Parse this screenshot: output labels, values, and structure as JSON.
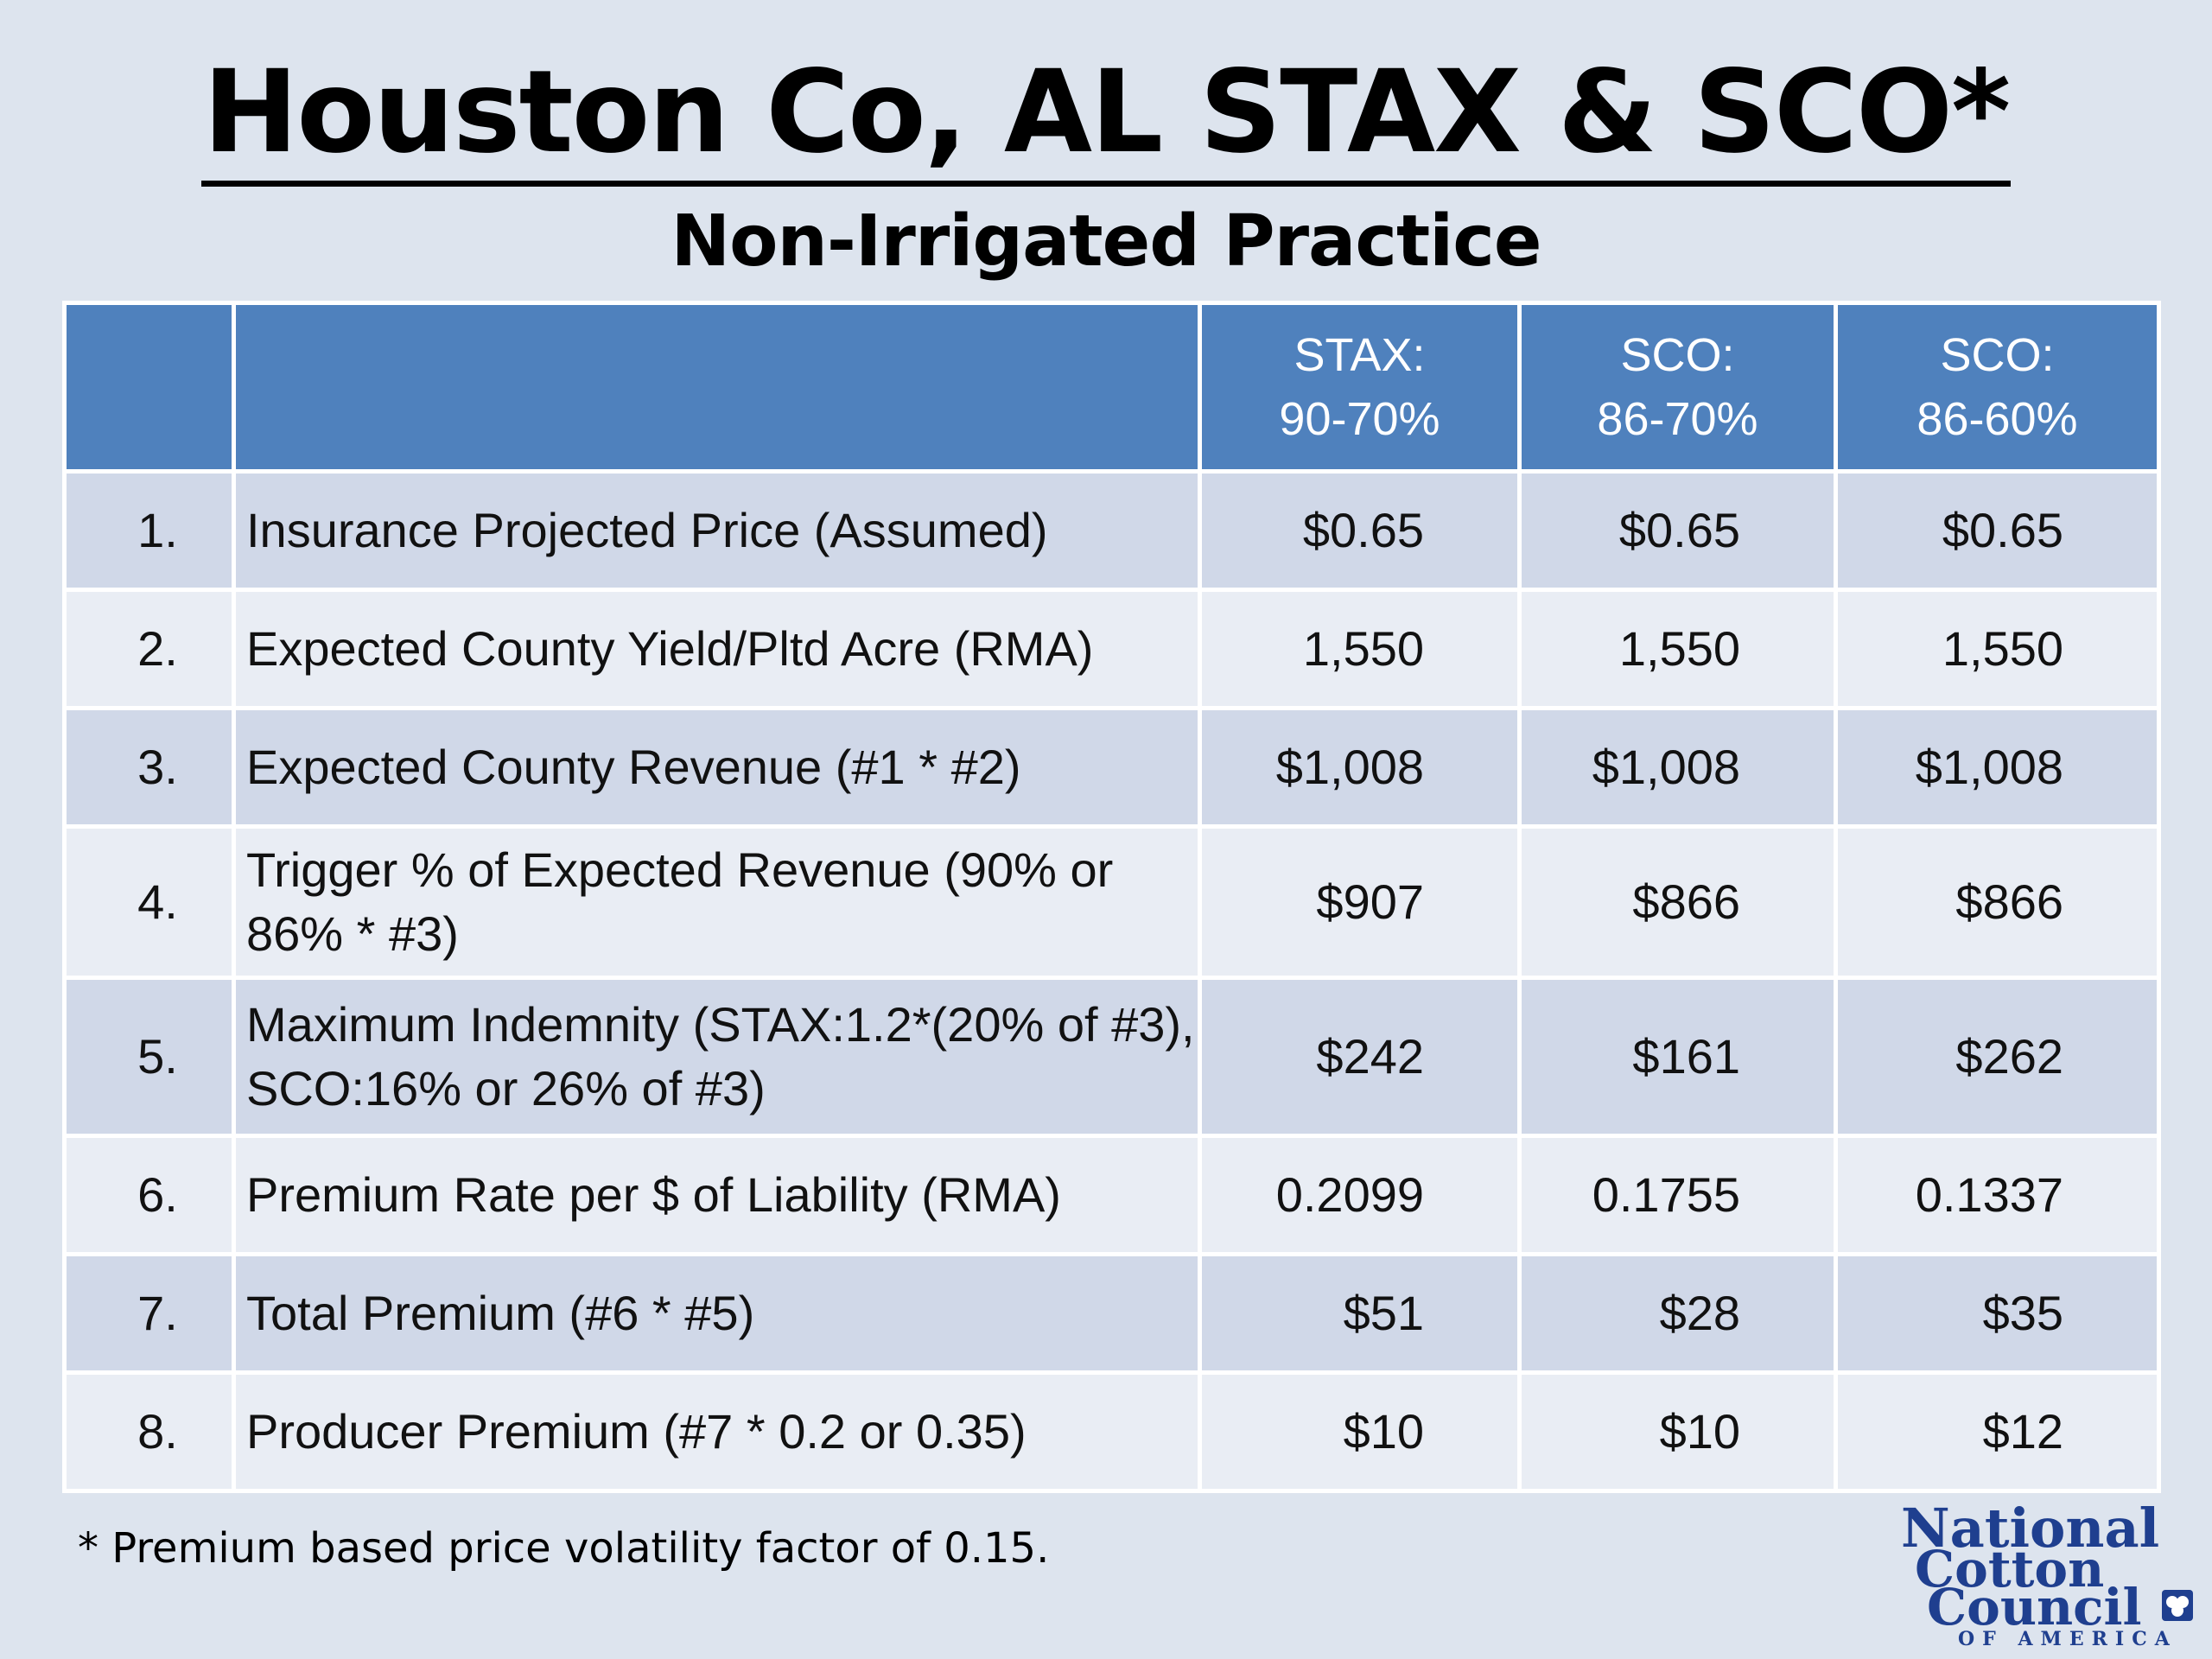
{
  "title": "Houston Co, AL STAX & SCO*",
  "subtitle": "Non-Irrigated Practice",
  "table": {
    "headers": [
      "",
      "",
      "STAX:\n90-70%",
      "SCO:\n86-70%",
      "SCO:\n86-60%"
    ],
    "rows": [
      {
        "num": "1.",
        "label": "Insurance Projected Price (Assumed)",
        "values": [
          "$0.65",
          "$0.65",
          "$0.65"
        ]
      },
      {
        "num": "2.",
        "label": "Expected County Yield/Pltd Acre (RMA)",
        "values": [
          "1,550",
          "1,550",
          "1,550"
        ]
      },
      {
        "num": "3.",
        "label": "Expected County Revenue (#1 * #2)",
        "values": [
          "$1,008",
          "$1,008",
          "$1,008"
        ]
      },
      {
        "num": "4.",
        "label": "Trigger % of Expected Revenue (90% or 86% * #3)",
        "values": [
          "$907",
          "$866",
          "$866"
        ]
      },
      {
        "num": "5.",
        "label": "Maximum Indemnity (STAX:1.2*(20% of #3), SCO:16% or 26% of #3)",
        "values": [
          "$242",
          "$161",
          "$262"
        ]
      },
      {
        "num": "6.",
        "label": "Premium Rate per $ of Liability (RMA)",
        "values": [
          "0.2099",
          "0.1755",
          "0.1337"
        ]
      },
      {
        "num": "7.",
        "label": "Total Premium (#6 * #5)",
        "values": [
          "$51",
          "$28",
          "$35"
        ]
      },
      {
        "num": "8.",
        "label": "Producer Premium (#7 * 0.2 or 0.35)",
        "values": [
          "$10",
          "$10",
          "$12"
        ]
      }
    ]
  },
  "footnote": "* Premium based price volatility factor of 0.15.",
  "logo": {
    "line1": "National",
    "line2": "Cotton",
    "line3": "Council",
    "line4": "OF AMERICA",
    "color": "#1f3f8f"
  },
  "colors": {
    "background": "#dde4ee",
    "header": "#4f81bd",
    "row_odd": "#d0d8e8",
    "row_even": "#e9edf4"
  }
}
